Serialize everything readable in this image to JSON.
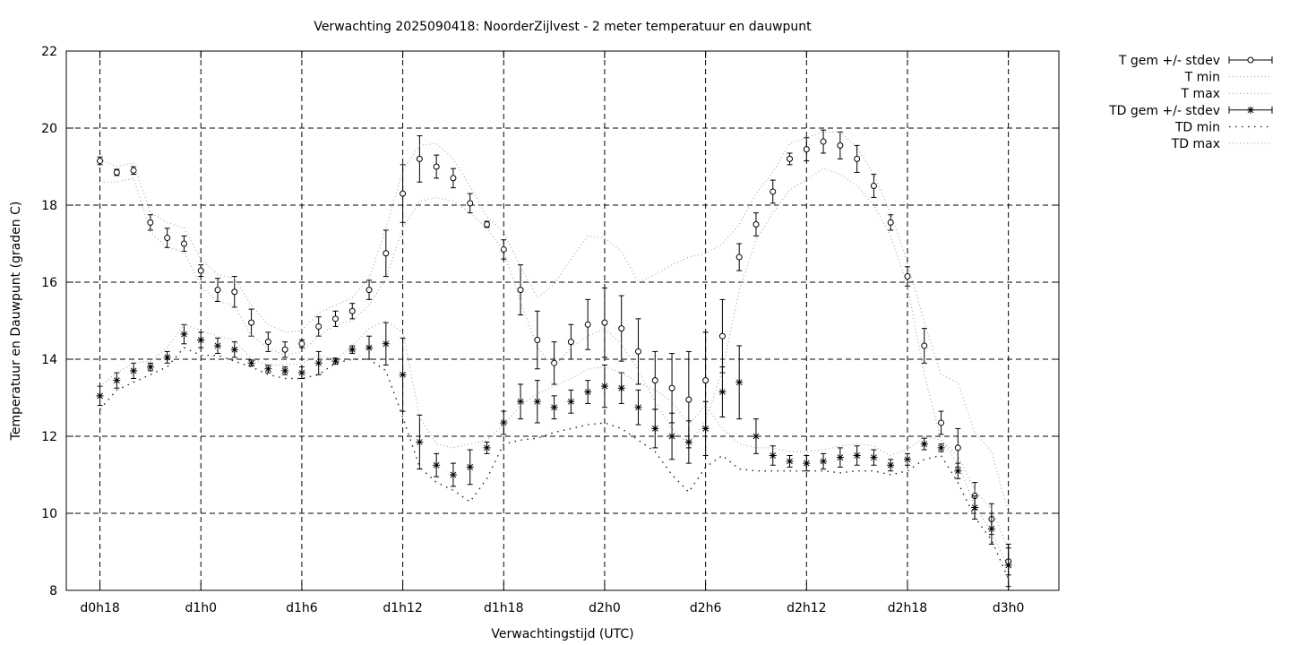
{
  "chart_data": {
    "type": "line",
    "title": "Verwachting 2025090418: NoorderZijlvest - 2 meter temperatuur en dauwpunt",
    "xlabel": "Verwachtingstijd (UTC)",
    "ylabel": "Temperatuur en Dauwpunt (graden C)",
    "ylim": [
      8,
      22
    ],
    "yticks": [
      8,
      10,
      12,
      14,
      16,
      18,
      20,
      22
    ],
    "xlim": [
      16,
      75
    ],
    "xticks": [
      {
        "x": 18,
        "label": "d0h18"
      },
      {
        "x": 24,
        "label": "d1h0"
      },
      {
        "x": 30,
        "label": "d1h6"
      },
      {
        "x": 36,
        "label": "d1h12"
      },
      {
        "x": 42,
        "label": "d1h18"
      },
      {
        "x": 48,
        "label": "d2h0"
      },
      {
        "x": 54,
        "label": "d2h6"
      },
      {
        "x": 60,
        "label": "d2h12"
      },
      {
        "x": 66,
        "label": "d2h18"
      },
      {
        "x": 72,
        "label": "d3h0"
      }
    ],
    "grid": true,
    "legend_position": "outside-top-right",
    "x": [
      18,
      19,
      20,
      21,
      22,
      23,
      24,
      25,
      26,
      27,
      28,
      29,
      30,
      31,
      32,
      33,
      34,
      35,
      36,
      37,
      38,
      39,
      40,
      41,
      42,
      43,
      44,
      45,
      46,
      47,
      48,
      49,
      50,
      51,
      52,
      53,
      54,
      55,
      56,
      57,
      58,
      59,
      60,
      61,
      62,
      63,
      64,
      65,
      66,
      67,
      68,
      69,
      70,
      71,
      72
    ],
    "series": [
      {
        "name": "T gem +/- stdev",
        "kind": "errorbar",
        "marker": "circle",
        "values": [
          19.15,
          18.85,
          18.9,
          17.55,
          17.15,
          17.0,
          16.3,
          15.8,
          15.75,
          14.95,
          14.45,
          14.25,
          14.4,
          14.85,
          15.05,
          15.25,
          15.8,
          16.75,
          18.3,
          19.2,
          19.0,
          18.7,
          18.05,
          17.5,
          16.85,
          15.8,
          14.5,
          13.9,
          14.45,
          14.9,
          14.95,
          14.8,
          14.2,
          13.45,
          13.25,
          12.95,
          13.45,
          14.6,
          16.65,
          17.5,
          18.35,
          19.2,
          19.45,
          19.65,
          19.55,
          19.2,
          18.5,
          17.55,
          16.15,
          14.35,
          12.35,
          11.7,
          10.45,
          9.85,
          8.75
        ],
        "stdev": [
          0.1,
          0.08,
          0.1,
          0.2,
          0.25,
          0.2,
          0.15,
          0.3,
          0.4,
          0.35,
          0.25,
          0.2,
          0.1,
          0.25,
          0.2,
          0.2,
          0.25,
          0.6,
          0.75,
          0.6,
          0.3,
          0.25,
          0.25,
          0.08,
          0.25,
          0.65,
          0.75,
          0.55,
          0.45,
          0.65,
          0.9,
          0.85,
          0.85,
          0.75,
          0.9,
          1.25,
          1.25,
          0.95,
          0.35,
          0.3,
          0.3,
          0.15,
          0.3,
          0.3,
          0.35,
          0.35,
          0.3,
          0.2,
          0.25,
          0.45,
          0.3,
          0.5,
          0.35,
          0.4,
          0.35
        ]
      },
      {
        "name": "T min",
        "kind": "line",
        "style": "dotted",
        "values": [
          18.6,
          18.6,
          18.7,
          17.3,
          16.9,
          16.8,
          15.9,
          15.5,
          15.4,
          14.6,
          14.3,
          14.1,
          14.2,
          14.6,
          14.9,
          15.0,
          15.4,
          16.1,
          17.4,
          18.1,
          18.2,
          18.1,
          17.8,
          17.4,
          16.8,
          15.5,
          14.3,
          13.8,
          14.3,
          14.6,
          14.8,
          14.4,
          13.7,
          12.9,
          12.2,
          11.8,
          12.4,
          13.7,
          15.8,
          17.1,
          17.8,
          18.4,
          18.65,
          18.95,
          18.8,
          18.5,
          18.0,
          17.2,
          15.9,
          13.6,
          11.9,
          11.3,
          10.2,
          9.5,
          8.6
        ]
      },
      {
        "name": "T max",
        "kind": "line",
        "style": "dotted",
        "values": [
          19.2,
          19.0,
          19.1,
          17.8,
          17.55,
          17.4,
          16.6,
          16.2,
          16.1,
          15.4,
          14.9,
          14.7,
          14.75,
          15.2,
          15.4,
          15.6,
          16.1,
          17.4,
          18.9,
          19.55,
          19.6,
          19.2,
          18.5,
          17.7,
          17.3,
          16.4,
          15.6,
          15.95,
          16.6,
          17.2,
          17.15,
          16.8,
          16.0,
          16.2,
          16.45,
          16.65,
          16.75,
          17.0,
          17.5,
          18.3,
          18.85,
          19.6,
          19.75,
          19.9,
          19.9,
          19.5,
          18.8,
          17.8,
          16.5,
          14.95,
          13.6,
          13.4,
          12.1,
          11.6,
          10.0
        ]
      },
      {
        "name": "TD gem +/- stdev",
        "kind": "errorbar",
        "marker": "star",
        "values": [
          13.05,
          13.45,
          13.7,
          13.8,
          14.05,
          14.65,
          14.5,
          14.35,
          14.25,
          13.9,
          13.75,
          13.7,
          13.65,
          13.9,
          13.95,
          14.25,
          14.3,
          14.4,
          13.6,
          11.85,
          11.25,
          11.0,
          11.2,
          11.7,
          12.35,
          12.9,
          12.9,
          12.75,
          12.9,
          13.15,
          13.3,
          13.25,
          12.75,
          12.2,
          12.0,
          11.85,
          12.2,
          13.15,
          13.4,
          12.0,
          11.5,
          11.35,
          11.3,
          11.35,
          11.45,
          11.5,
          11.45,
          11.25,
          11.4,
          11.8,
          11.7,
          11.1,
          10.15,
          9.6,
          8.65
        ],
        "stdev": [
          0.25,
          0.2,
          0.2,
          0.1,
          0.15,
          0.25,
          0.2,
          0.2,
          0.2,
          0.08,
          0.1,
          0.1,
          0.15,
          0.3,
          0.08,
          0.1,
          0.3,
          0.55,
          0.95,
          0.7,
          0.3,
          0.3,
          0.45,
          0.15,
          0.3,
          0.45,
          0.55,
          0.3,
          0.3,
          0.3,
          0.55,
          0.4,
          0.45,
          0.5,
          0.6,
          0.55,
          0.7,
          0.65,
          0.95,
          0.45,
          0.25,
          0.15,
          0.2,
          0.2,
          0.25,
          0.25,
          0.2,
          0.15,
          0.15,
          0.15,
          0.1,
          0.2,
          0.3,
          0.4,
          0.55
        ]
      },
      {
        "name": "TD min",
        "kind": "line",
        "style": "sparse-dotted",
        "values": [
          12.7,
          13.2,
          13.4,
          13.6,
          13.8,
          14.3,
          14.1,
          14.1,
          13.95,
          13.8,
          13.6,
          13.5,
          13.5,
          13.6,
          13.9,
          14.0,
          14.0,
          13.7,
          12.5,
          11.2,
          10.8,
          10.6,
          10.3,
          10.9,
          11.8,
          11.9,
          11.95,
          12.1,
          12.2,
          12.3,
          12.35,
          12.2,
          11.9,
          11.6,
          11.0,
          10.55,
          11.2,
          11.5,
          11.15,
          11.1,
          11.1,
          11.1,
          11.1,
          11.1,
          11.05,
          11.1,
          11.1,
          11.0,
          11.1,
          11.4,
          11.5,
          10.8,
          9.9,
          9.3,
          8.3
        ]
      },
      {
        "name": "TD max",
        "kind": "line",
        "style": "dotted",
        "values": [
          13.3,
          13.65,
          13.9,
          13.95,
          14.3,
          14.9,
          14.75,
          14.6,
          14.5,
          14.0,
          13.85,
          13.85,
          13.9,
          14.1,
          14.0,
          14.35,
          14.8,
          15.0,
          14.7,
          12.5,
          11.8,
          11.7,
          11.8,
          11.9,
          12.3,
          12.8,
          13.1,
          13.3,
          13.5,
          13.75,
          13.8,
          13.65,
          13.4,
          13.2,
          12.9,
          12.3,
          12.8,
          12.2,
          11.8,
          11.7,
          11.7,
          11.6,
          11.6,
          11.65,
          11.75,
          11.8,
          11.75,
          11.5,
          11.65,
          12.0,
          11.9,
          11.5,
          10.6,
          10.1,
          9.1
        ]
      }
    ]
  }
}
